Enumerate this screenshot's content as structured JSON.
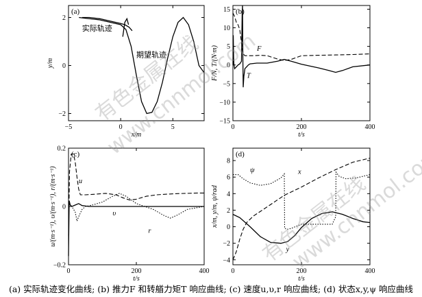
{
  "caption": "(a) 实际轨迹变化曲线; (b) 推力F 和转艏力矩T 响应曲线; (c) 速度u,υ,r 响应曲线; (d) 状态x,y,ψ 响应曲线",
  "watermark": [
    "有色金属在线",
    "www.cnnmol.com"
  ],
  "colors": {
    "line": "#000000",
    "axis": "#000000",
    "background": "#ffffff"
  },
  "chart_data": [
    {
      "type": "line",
      "panel_label": "(a)",
      "xlabel": "x/m",
      "ylabel": "y/m",
      "xlim": [
        -5,
        8
      ],
      "ylim": [
        -2.3,
        2.5
      ],
      "xticks": [
        -5,
        0,
        5
      ],
      "yticks": [
        -2,
        0,
        2
      ],
      "tick_labels_x": [
        "−5",
        "0",
        "5"
      ],
      "tick_labels_y": [
        "−2",
        "0",
        "2"
      ],
      "annotations": [
        "实际轨迹",
        "期望轨迹"
      ],
      "series": [
        {
          "name": "期望轨迹",
          "style": "solid",
          "x": [
            -4,
            -2,
            0,
            0.5,
            1.0,
            1.5,
            2.0,
            2.5,
            3.0,
            3.5,
            4.0,
            4.5,
            5.0,
            5.5,
            6.0,
            6.5,
            7.0,
            7.5,
            8.0
          ],
          "y": [
            2.0,
            1.9,
            1.7,
            1.5,
            0.8,
            -0.4,
            -1.5,
            -2.0,
            -1.95,
            -1.5,
            -0.7,
            0.3,
            1.2,
            1.8,
            2.0,
            1.7,
            1.0,
            0.0,
            -0.3
          ]
        },
        {
          "name": "实际轨迹",
          "style": "solid",
          "x": [
            -3.7,
            -3.0,
            -2.0,
            -1.0,
            0.0,
            0.4,
            0.8,
            1.1
          ],
          "y": [
            2.0,
            2.0,
            1.95,
            1.85,
            1.75,
            1.7,
            1.6,
            1.45
          ]
        },
        {
          "name": "",
          "style": "solid",
          "x": [
            0.2,
            0.4,
            0.6,
            0.75
          ],
          "y": [
            1.2,
            1.8,
            1.95,
            1.7
          ]
        }
      ]
    },
    {
      "type": "line",
      "panel_label": "(b)",
      "xlabel": "t/s",
      "ylabel": "F/N, T/(N·m)",
      "xlim": [
        0,
        400
      ],
      "ylim": [
        -15,
        16
      ],
      "xticks": [
        0,
        200,
        400
      ],
      "yticks": [
        -15,
        -10,
        -5,
        0,
        5,
        10,
        15
      ],
      "tick_labels_x": [
        "0",
        "200",
        "400"
      ],
      "tick_labels_y": [
        "−15",
        "−10",
        "−5",
        "0",
        "5",
        "10",
        "15"
      ],
      "annotations": [
        "F",
        "T"
      ],
      "series": [
        {
          "name": "F",
          "style": "dashed",
          "x": [
            0,
            5,
            10,
            15,
            20,
            25,
            30,
            35,
            45,
            60,
            80,
            100,
            130,
            150,
            170,
            200,
            250,
            300,
            350,
            400
          ],
          "y": [
            14,
            13,
            11.5,
            10.8,
            9.5,
            6.0,
            3.0,
            2.5,
            2.5,
            2.5,
            2.6,
            2.5,
            1.6,
            1.2,
            1.5,
            2.5,
            2.6,
            2.7,
            2.8,
            3.0
          ]
        },
        {
          "name": "T",
          "style": "solid",
          "x": [
            0,
            1,
            2,
            3,
            5,
            10,
            15,
            20,
            25,
            27,
            28,
            29,
            30,
            32,
            35,
            40,
            45,
            50,
            70,
            100,
            130,
            150,
            170,
            200,
            250,
            280,
            300,
            320,
            350,
            400
          ],
          "y": [
            0,
            8,
            2,
            0,
            -1,
            -0.5,
            0,
            0.3,
            1,
            14,
            16,
            2,
            -6,
            -3,
            -1,
            -0.5,
            0,
            0.3,
            0.5,
            0.5,
            1.0,
            1.5,
            1.0,
            0.2,
            -0.8,
            -1.5,
            -2.0,
            -1.5,
            -0.5,
            0.0
          ]
        }
      ]
    },
    {
      "type": "line",
      "panel_label": "(c)",
      "xlabel": "t/s",
      "ylabel": "u/(m·s⁻¹), υ/(m·s⁻¹), r/(m·s⁻¹)",
      "xlim": [
        0,
        400
      ],
      "ylim": [
        -0.2,
        0.2
      ],
      "xticks": [
        0,
        200,
        400
      ],
      "yticks": [
        -0.2,
        0,
        0.2
      ],
      "tick_labels_x": [
        "0",
        "200",
        "400"
      ],
      "tick_labels_y": [
        "−0.2",
        "0",
        "0.2"
      ],
      "annotations": [
        "u",
        "υ",
        "r"
      ],
      "series": [
        {
          "name": "u",
          "style": "dashed",
          "x": [
            0,
            3,
            8,
            15,
            20,
            25,
            30,
            35,
            50,
            80,
            110,
            140,
            160,
            180,
            200,
            230,
            260,
            290,
            320,
            350,
            380,
            400
          ],
          "y": [
            -0.1,
            0.12,
            0.18,
            0.18,
            0.15,
            0.1,
            0.06,
            0.04,
            0.04,
            0.042,
            0.045,
            0.04,
            0.03,
            0.022,
            0.025,
            0.035,
            0.04,
            0.042,
            0.044,
            0.045,
            0.046,
            0.046
          ]
        },
        {
          "name": "υ",
          "style": "solid",
          "x": [
            0,
            2,
            5,
            10,
            20,
            30,
            40,
            60,
            100,
            200,
            300,
            400
          ],
          "y": [
            -0.17,
            0.02,
            0.005,
            0.0,
            0.005,
            0.01,
            0.003,
            0.0,
            0.0,
            0.0,
            0.0,
            0.0
          ]
        },
        {
          "name": "r",
          "style": "dotted",
          "x": [
            0,
            5,
            10,
            20,
            25,
            30,
            40,
            50,
            70,
            100,
            130,
            150,
            170,
            200,
            250,
            280,
            300,
            320,
            350,
            400
          ],
          "y": [
            0.0,
            0.0,
            0.0,
            -0.02,
            -0.05,
            -0.035,
            -0.01,
            0.0,
            0.005,
            0.015,
            0.035,
            0.045,
            0.035,
            0.01,
            -0.01,
            -0.03,
            -0.04,
            -0.03,
            -0.01,
            0.0
          ]
        }
      ]
    },
    {
      "type": "line",
      "panel_label": "(d)",
      "xlabel": "t/s",
      "ylabel": "x/m, y/m, ψ/rad",
      "xlim": [
        0,
        400
      ],
      "ylim": [
        -4.6,
        9.5
      ],
      "xticks": [
        0,
        200,
        400
      ],
      "yticks": [
        -4,
        -2,
        0,
        2,
        4,
        6,
        8
      ],
      "tick_labels_x": [
        "0",
        "200",
        "400"
      ],
      "tick_labels_y": [
        "−4",
        "−2",
        "0",
        "2",
        "4",
        "6",
        "8"
      ],
      "annotations": [
        "ψ",
        "x",
        "y"
      ],
      "series": [
        {
          "name": "x",
          "style": "dashed",
          "x": [
            0,
            10,
            20,
            30,
            40,
            60,
            100,
            150,
            200,
            250,
            300,
            350,
            400
          ],
          "y": [
            -4.0,
            -3.0,
            -1.5,
            -0.3,
            0.5,
            1.3,
            2.4,
            3.8,
            4.8,
            5.9,
            6.9,
            7.8,
            8.3
          ]
        },
        {
          "name": "ψ",
          "style": "dotted",
          "x": [
            0,
            15,
            30,
            50,
            80,
            110,
            140,
            150,
            151,
            160,
            170,
            200,
            250,
            290,
            300,
            301,
            310,
            330,
            360,
            400
          ],
          "y": [
            6.3,
            6.3,
            5.8,
            5.3,
            5.0,
            5.2,
            5.9,
            6.4,
            -0.2,
            -0.3,
            -0.2,
            0.3,
            0.3,
            0.3,
            1.2,
            6.6,
            6.1,
            5.8,
            5.9,
            6.3
          ]
        },
        {
          "name": "y",
          "style": "solid",
          "x": [
            0,
            20,
            50,
            80,
            110,
            140,
            160,
            180,
            200,
            230,
            260,
            290,
            320,
            350,
            380,
            400
          ],
          "y": [
            1.5,
            1.1,
            0.0,
            -1.2,
            -1.9,
            -2.0,
            -1.8,
            -1.1,
            -0.1,
            1.0,
            1.6,
            1.8,
            1.5,
            1.0,
            0.6,
            0.5
          ]
        }
      ]
    }
  ]
}
